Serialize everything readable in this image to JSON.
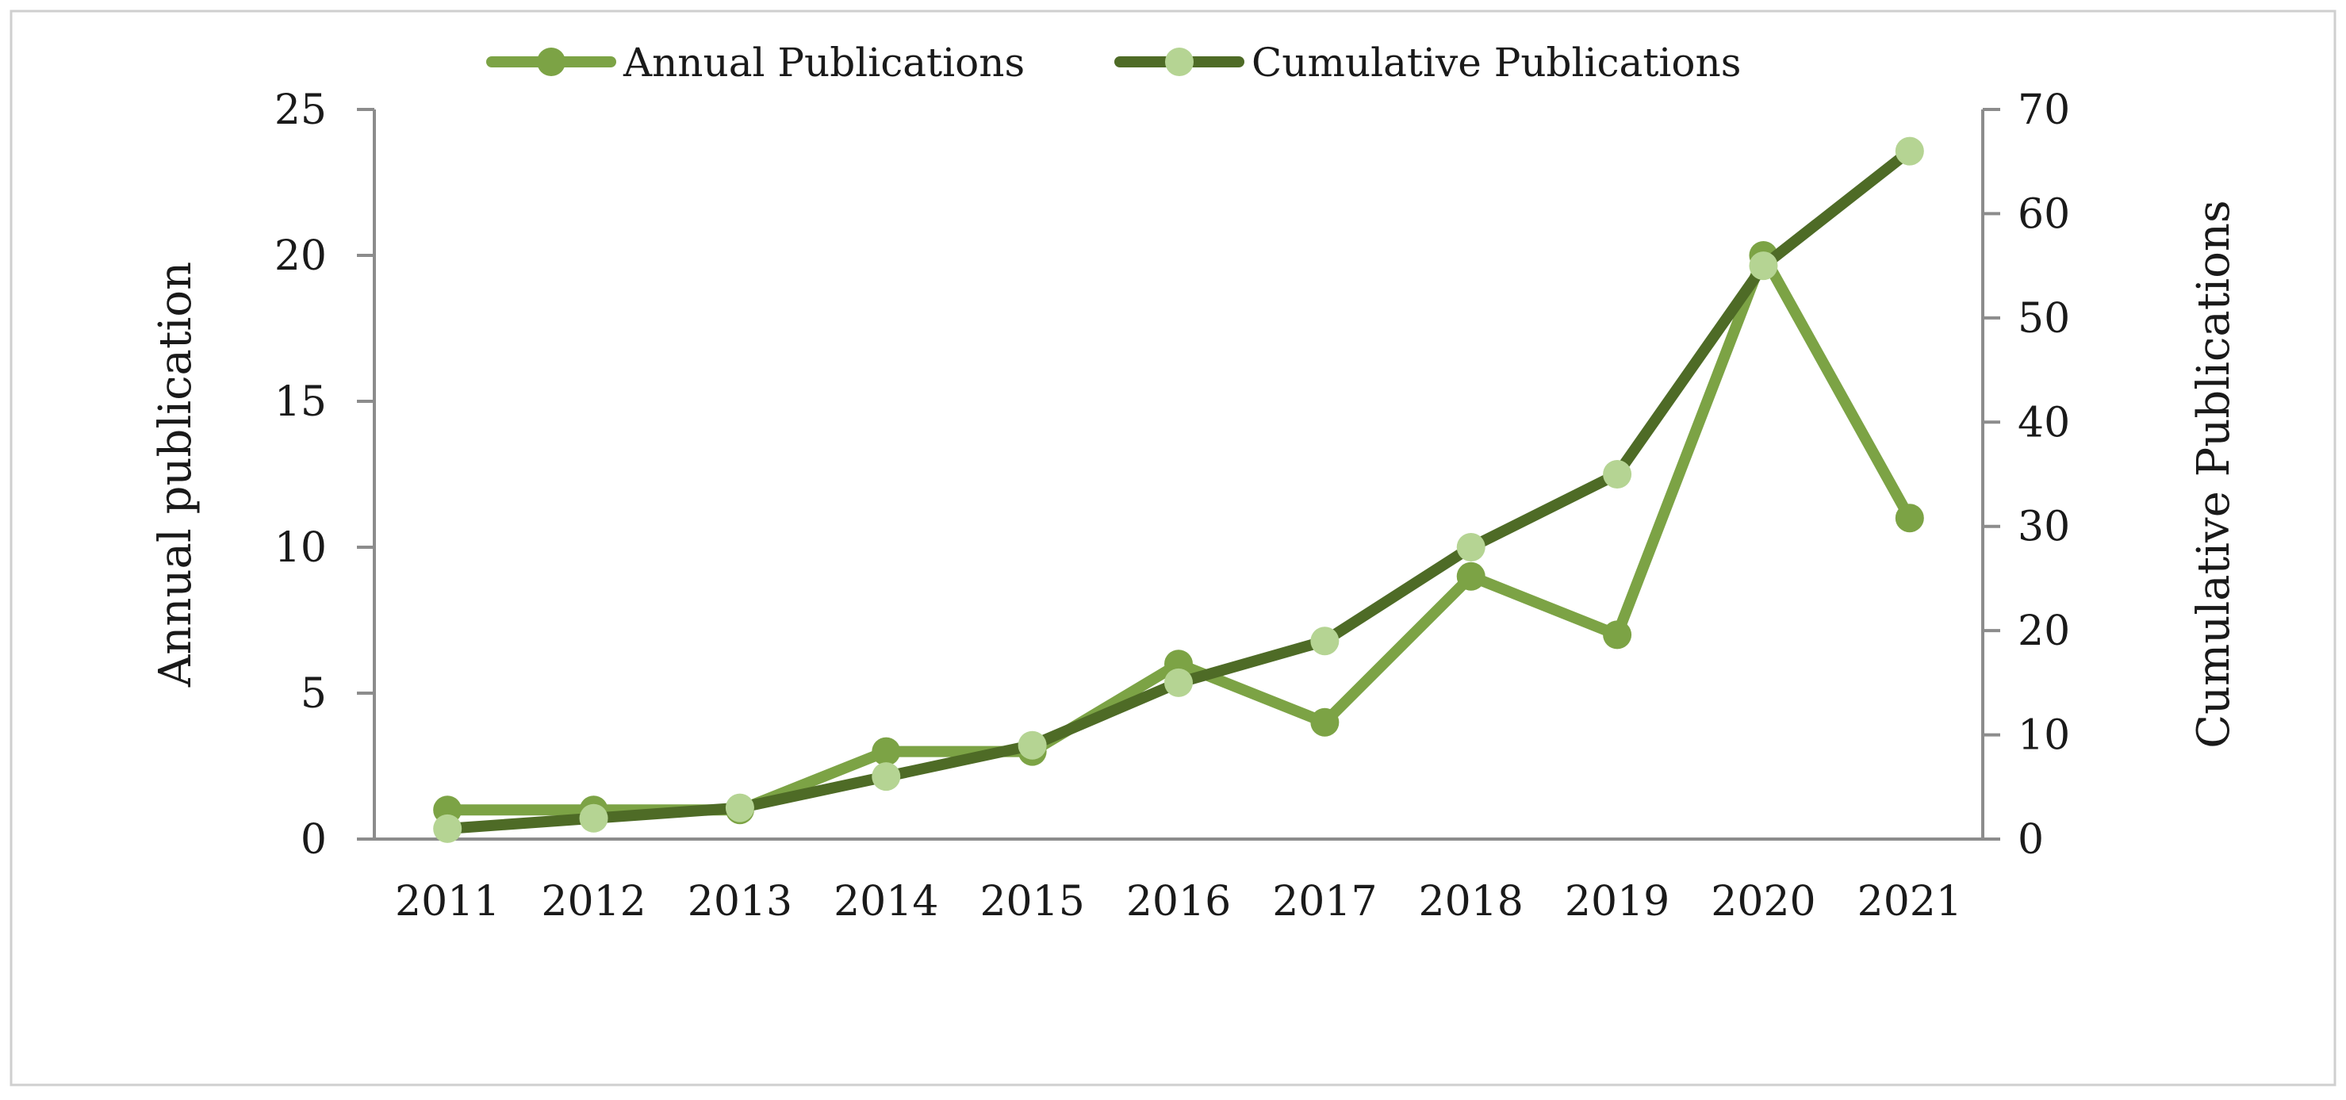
{
  "chart_data": {
    "type": "line",
    "title": "",
    "x": [
      "2011",
      "2012",
      "2013",
      "2014",
      "2015",
      "2016",
      "2017",
      "2018",
      "2019",
      "2020",
      "2021"
    ],
    "xlabel": "",
    "ylabel_left": "Annual publication",
    "ylabel_right": "Cumulative Publications",
    "ylim_left": [
      0,
      25
    ],
    "yticks_left": [
      0,
      5,
      10,
      15,
      20,
      25
    ],
    "ylim_right": [
      0,
      70
    ],
    "yticks_right": [
      0,
      10,
      20,
      30,
      40,
      50,
      60,
      70
    ],
    "grid": false,
    "legend_position": "top-center",
    "series": [
      {
        "name": "Annual Publications",
        "axis": "left",
        "line_color": "#7ca345",
        "marker_color": "#7ca345",
        "values": [
          1,
          1,
          1,
          3,
          3,
          6,
          4,
          9,
          7,
          20,
          11
        ]
      },
      {
        "name": "Cumulative Publications",
        "axis": "right",
        "line_color": "#4e6b26",
        "marker_color": "#b5d493",
        "values": [
          1,
          2,
          3,
          6,
          9,
          15,
          19,
          28,
          35,
          55,
          66
        ]
      }
    ]
  }
}
